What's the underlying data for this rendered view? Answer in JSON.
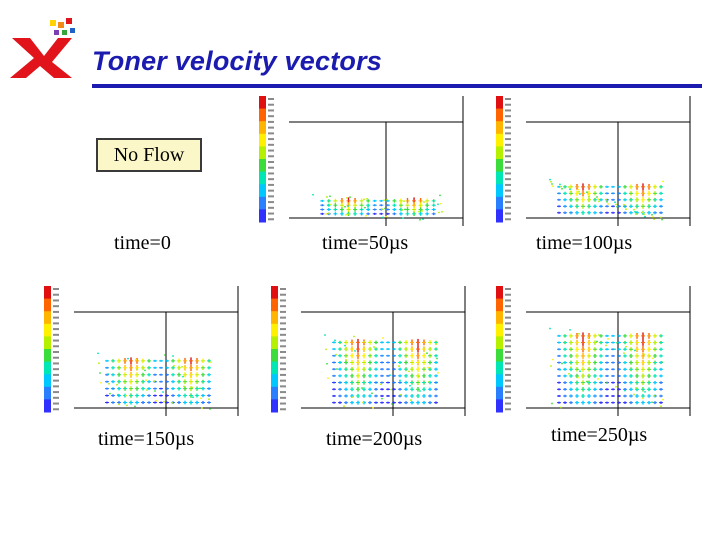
{
  "title": "Toner velocity vectors",
  "logo": {
    "icon": "xerox-x-logo-icon",
    "colors": {
      "x": "#e0141a",
      "dots": [
        "#e0141a",
        "#f28a1b",
        "#ffd200",
        "#37a63b",
        "#1f62c6",
        "#7a3fb0"
      ]
    }
  },
  "accent_color": "#1b1bb0",
  "no_flow_label": "No Flow",
  "panels": [
    {
      "caption": "time=0",
      "vectors": false
    },
    {
      "caption": "time=50µs",
      "vectors": true,
      "fill": 0.16
    },
    {
      "caption": "time=100µs",
      "vectors": true,
      "fill": 0.3
    },
    {
      "caption": "time=150µs",
      "vectors": true,
      "fill": 0.45
    },
    {
      "caption": "time=200µs",
      "vectors": true,
      "fill": 0.62
    },
    {
      "caption": "time=250µs",
      "vectors": true,
      "fill": 0.68
    }
  ]
}
